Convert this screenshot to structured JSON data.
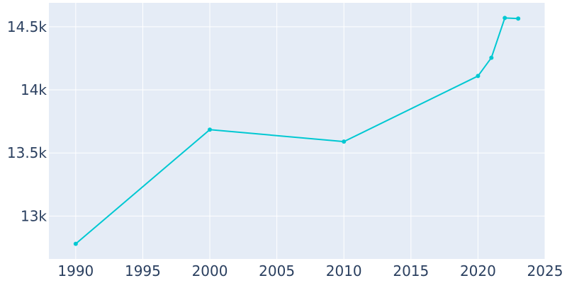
{
  "chart_data": {
    "type": "line",
    "x": [
      1990,
      2000,
      2010,
      2020,
      2021,
      2022,
      2023
    ],
    "series": [
      {
        "values": [
          12780,
          13685,
          13590,
          14110,
          14255,
          14570,
          14565
        ]
      }
    ],
    "xlim": [
      1988,
      2025
    ],
    "ylim": [
      12660,
      14690
    ],
    "x_ticks": [
      1990,
      1995,
      2000,
      2005,
      2010,
      2015,
      2020,
      2025
    ],
    "x_tick_labels": [
      "1990",
      "1995",
      "2000",
      "2005",
      "2010",
      "2015",
      "2020",
      "2025"
    ],
    "y_ticks": [
      13000,
      13500,
      14000,
      14500
    ],
    "y_tick_labels": [
      "13k",
      "13.5k",
      "14k",
      "14.5k"
    ],
    "grid": true,
    "colors": {
      "line": "#00c8d2",
      "plot_background": "#e5ecf6",
      "gridline": "#ffffff",
      "tick_text": "#2a3f5f"
    }
  }
}
